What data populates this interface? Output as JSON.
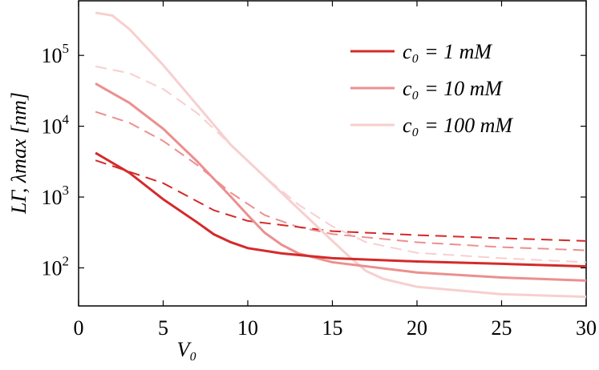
{
  "chart_data": {
    "type": "line",
    "xlabel": "V₀",
    "ylabel": "LΓ, λmax [nm]",
    "log_y": true,
    "xlim": [
      0,
      30
    ],
    "xticks": [
      0,
      5,
      10,
      15,
      20,
      25,
      30
    ],
    "ylim": [
      29,
      590000
    ],
    "yticks": [
      {
        "value": 100,
        "label": "10",
        "exponent": "2"
      },
      {
        "value": 1000,
        "label": "10",
        "exponent": "3"
      },
      {
        "value": 10000,
        "label": "10",
        "exponent": "4"
      },
      {
        "value": 100000,
        "label": "10",
        "exponent": "5"
      }
    ],
    "series": [
      {
        "name": "c₀ = 1 mM",
        "color": "#d42a2a",
        "dash": false,
        "x": [
          1,
          3,
          5,
          7,
          8,
          9,
          10,
          12,
          15,
          20,
          25,
          30
        ],
        "values": [
          4200,
          2200,
          930,
          440,
          297,
          230,
          190,
          160,
          137,
          123,
          114,
          105
        ]
      },
      {
        "name": "c₀ = 10 mM",
        "color": "#ec8f8f",
        "dash": false,
        "x": [
          1,
          3,
          5,
          7,
          9,
          10,
          11,
          12,
          13,
          15,
          20,
          25,
          30
        ],
        "values": [
          40000,
          21400,
          9200,
          3200,
          1010,
          555,
          313,
          212,
          160,
          120,
          86,
          73,
          66
        ]
      },
      {
        "name": "c₀ = 100 mM",
        "color": "#f7cfcf",
        "dash": false,
        "x": [
          1,
          2,
          3,
          5,
          7,
          9,
          11,
          13,
          15,
          16,
          17,
          18,
          20,
          25,
          30
        ],
        "values": [
          400000,
          365000,
          236000,
          73000,
          20000,
          5450,
          1930,
          680,
          240,
          144,
          90,
          70,
          54,
          42.5,
          39
        ]
      },
      {
        "color": "#d42a2a",
        "dash": true,
        "x": [
          1,
          5,
          8,
          10,
          15,
          20,
          25,
          30
        ],
        "values": [
          3300,
          1570,
          650,
          460,
          330,
          290,
          262,
          240
        ]
      },
      {
        "color": "#ec8f8f",
        "dash": true,
        "x": [
          1,
          3,
          5,
          7,
          9,
          11,
          13,
          15,
          20,
          25,
          30
        ],
        "values": [
          16000,
          11200,
          6200,
          2850,
          1150,
          555,
          376,
          300,
          230,
          196,
          177
        ]
      },
      {
        "color": "#f7cfcf",
        "dash": true,
        "x": [
          1,
          3,
          5,
          7,
          9,
          11,
          13,
          15,
          17,
          20,
          25,
          30
        ],
        "values": [
          70000,
          56000,
          33500,
          15400,
          5450,
          1930,
          780,
          385,
          230,
          163,
          137,
          120
        ]
      }
    ]
  }
}
